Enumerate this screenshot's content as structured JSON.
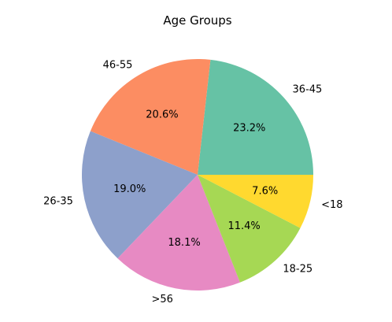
{
  "chart_data": {
    "type": "pie",
    "title": "Age Groups",
    "start_angle_deg": 0,
    "direction": "counterclockwise",
    "slices": [
      {
        "label": "36-45",
        "value": 23.2,
        "pct_text": "23.2%",
        "color": "#66c2a5"
      },
      {
        "label": "46-55",
        "value": 20.6,
        "pct_text": "20.6%",
        "color": "#fc8d62"
      },
      {
        "label": "26-35",
        "value": 19.0,
        "pct_text": "19.0%",
        "color": "#8da0cb"
      },
      {
        "label": ">56",
        "value": 18.1,
        "pct_text": "18.1%",
        "color": "#e78ac3"
      },
      {
        "label": "18-25",
        "value": 11.4,
        "pct_text": "11.4%",
        "color": "#a6d854"
      },
      {
        "label": "<18",
        "value": 7.6,
        "pct_text": "7.6%",
        "color": "#ffd92f"
      }
    ]
  }
}
